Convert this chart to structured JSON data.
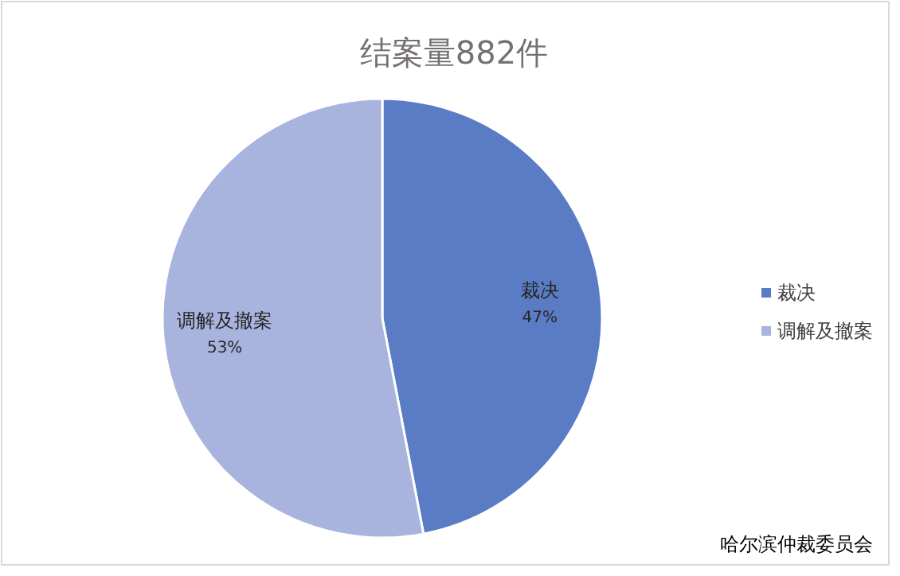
{
  "chart_data": {
    "type": "pie",
    "title": "结案量882件",
    "categories": [
      "裁决",
      "调解及撤案"
    ],
    "values": [
      47,
      53
    ],
    "colors": [
      "#5a7cc4",
      "#a9b4de"
    ],
    "value_labels": [
      "47%",
      "53%"
    ],
    "legend": "right",
    "annotations": [
      "哈尔滨仲裁委员会"
    ]
  }
}
